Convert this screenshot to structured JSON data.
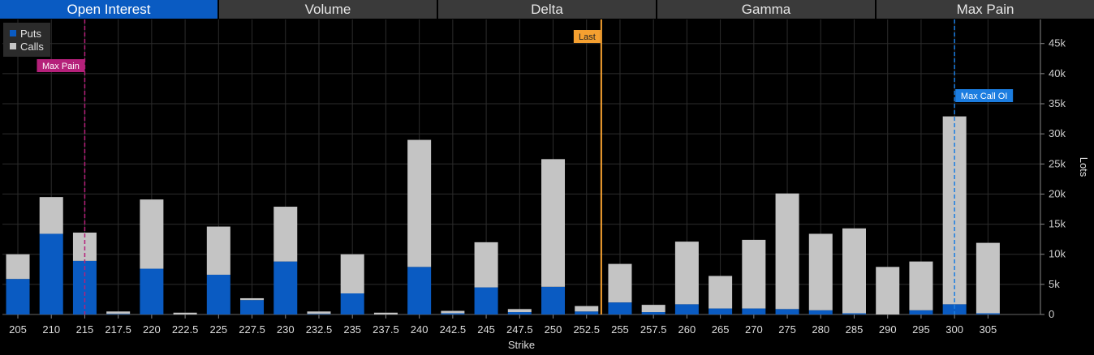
{
  "tabs": [
    {
      "label": "Open Interest",
      "active": true
    },
    {
      "label": "Volume",
      "active": false
    },
    {
      "label": "Delta",
      "active": false
    },
    {
      "label": "Gamma",
      "active": false
    },
    {
      "label": "Max Pain",
      "active": false
    }
  ],
  "colors": {
    "puts": "#0a5bc2",
    "calls": "#c4c4c4",
    "last": "#f5a030",
    "max_pain": "#b5207a",
    "max_call_oi": "#1c7de0"
  },
  "chart_data": {
    "type": "bar",
    "stacked": true,
    "categories": [
      "205",
      "210",
      "215",
      "217.5",
      "220",
      "222.5",
      "225",
      "227.5",
      "230",
      "232.5",
      "235",
      "237.5",
      "240",
      "242.5",
      "245",
      "247.5",
      "250",
      "252.5",
      "255",
      "257.5",
      "260",
      "265",
      "270",
      "275",
      "280",
      "285",
      "290",
      "295",
      "300",
      "305"
    ],
    "series": [
      {
        "name": "Puts",
        "values": [
          5900,
          13400,
          8900,
          100,
          7600,
          0,
          6600,
          2400,
          8800,
          100,
          3500,
          0,
          7900,
          200,
          4500,
          400,
          4600,
          500,
          2000,
          400,
          1700,
          1000,
          1000,
          900,
          700,
          200,
          0,
          700,
          1700,
          200
        ]
      },
      {
        "name": "Calls",
        "values": [
          4100,
          6100,
          4700,
          400,
          11500,
          300,
          8000,
          300,
          9100,
          400,
          6500,
          300,
          21100,
          400,
          7500,
          500,
          21200,
          900,
          6400,
          1200,
          10400,
          5400,
          11400,
          19200,
          12700,
          14100,
          7900,
          8100,
          31200,
          11700
        ]
      }
    ],
    "xlabel": "Strike",
    "ylabel": "Lots",
    "ylim": [
      0,
      49000
    ],
    "yticks": [
      0,
      5000,
      10000,
      15000,
      20000,
      25000,
      30000,
      35000,
      40000,
      45000
    ],
    "ytick_labels": [
      "0",
      "5k",
      "10k",
      "15k",
      "20k",
      "25k",
      "30k",
      "35k",
      "40k",
      "45k"
    ],
    "grid": true,
    "legend": "top-left",
    "markers": [
      {
        "label": "Max Pain",
        "strike": "215",
        "style": "dashed"
      },
      {
        "label": "Last",
        "strike": "253.6",
        "style": "solid"
      },
      {
        "label": "Max Call OI",
        "strike": "300",
        "style": "dashed"
      }
    ]
  }
}
